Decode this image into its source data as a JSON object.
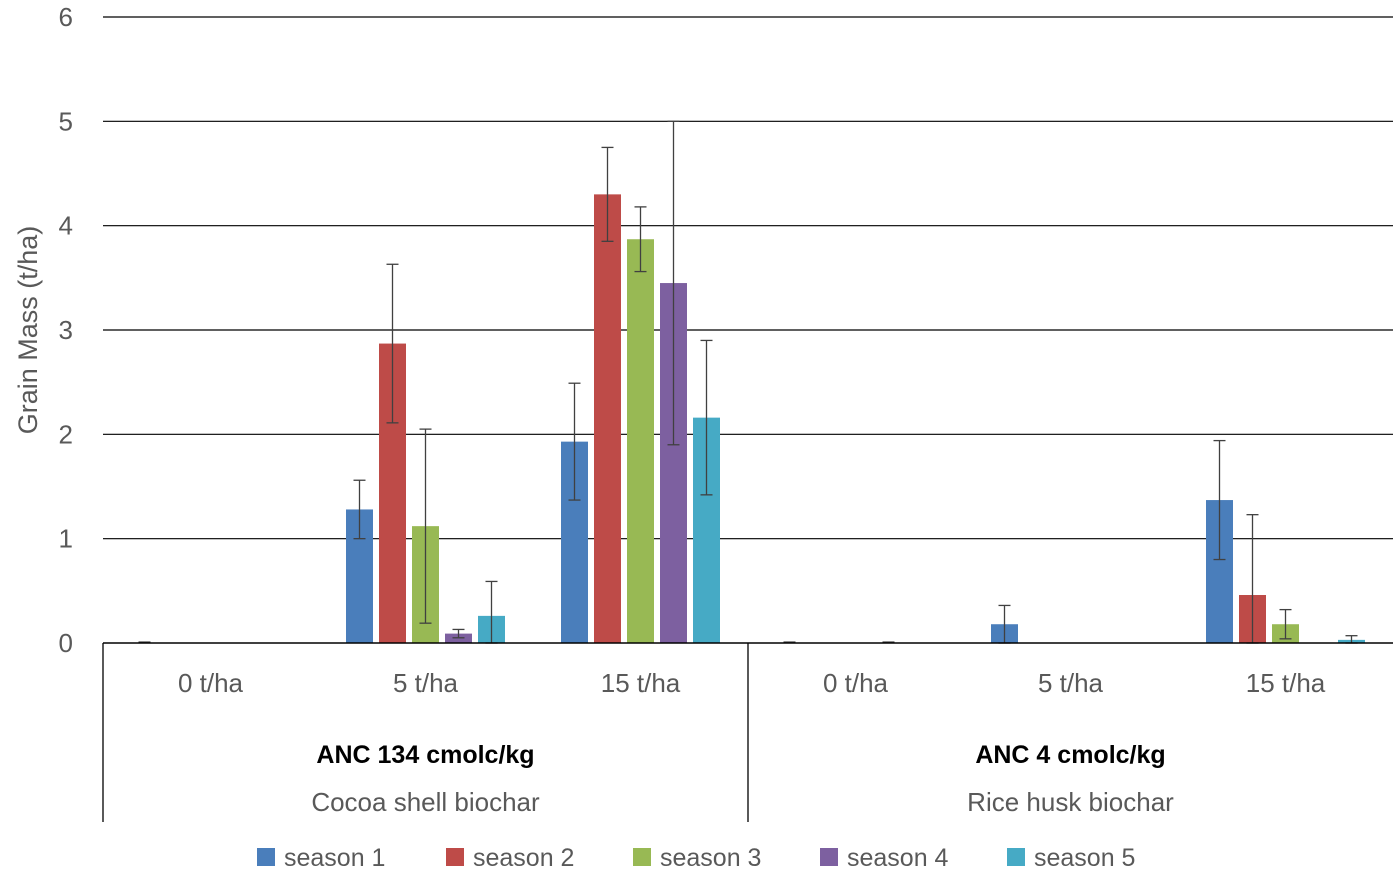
{
  "chart_data": {
    "type": "bar",
    "ylabel": "Grain Mass (t/ha)",
    "ylim": [
      0,
      6
    ],
    "yticks": [
      0,
      1,
      2,
      3,
      4,
      5,
      6
    ],
    "grid": true,
    "legend_position": "bottom",
    "categories": [
      "0 t/ha",
      "5 t/ha",
      "15 t/ha",
      "0 t/ha",
      "5 t/ha",
      "15 t/ha"
    ],
    "groups": [
      {
        "name": "Cocoa shell biochar",
        "annotation": "ANC 134 cmolc/kg",
        "categories": [
          "0 t/ha",
          "5 t/ha",
          "15 t/ha"
        ]
      },
      {
        "name": "Rice husk biochar",
        "annotation": "ANC 4 cmolc/kg",
        "categories": [
          "0 t/ha",
          "5 t/ha",
          "15 t/ha"
        ]
      }
    ],
    "series": [
      {
        "name": "season 1",
        "color": "#4a7ebb",
        "values": [
          0,
          1.28,
          1.93,
          0,
          0.18,
          1.37
        ],
        "errors": [
          0,
          0.28,
          0.56,
          0,
          0.18,
          0.57
        ]
      },
      {
        "name": "season 2",
        "color": "#be4b48",
        "values": [
          0,
          2.87,
          4.3,
          0,
          0,
          0.46
        ],
        "errors": [
          0,
          0.76,
          0.45,
          0,
          0,
          0.77
        ]
      },
      {
        "name": "season 3",
        "color": "#98b954",
        "values": [
          0,
          1.12,
          3.87,
          0,
          0,
          0.18
        ],
        "errors": [
          0,
          0.93,
          0.31,
          0,
          0,
          0.14
        ]
      },
      {
        "name": "season 4",
        "color": "#7d60a0",
        "values": [
          0,
          0.09,
          3.45,
          0,
          0,
          0
        ],
        "errors": [
          0,
          0.04,
          1.55,
          0,
          0,
          0
        ]
      },
      {
        "name": "season 5",
        "color": "#46aac5",
        "values": [
          0,
          0.26,
          2.16,
          0,
          0,
          0.03
        ],
        "errors": [
          0,
          0.33,
          0.74,
          0,
          0,
          0.04
        ]
      }
    ]
  }
}
